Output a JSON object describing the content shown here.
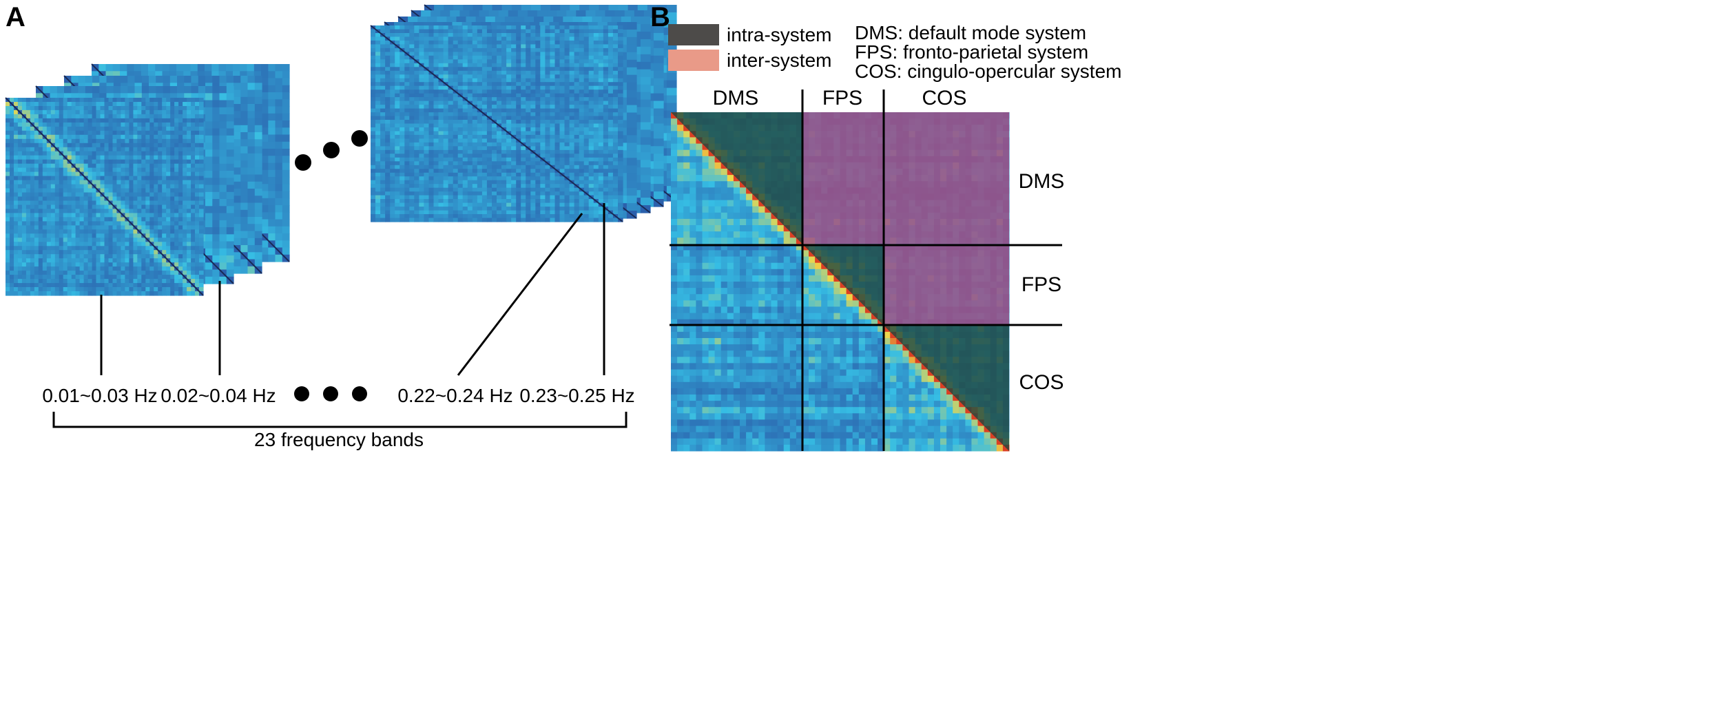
{
  "panel_a": {
    "label": "A",
    "band_labels": [
      "0.01~0.03 Hz",
      "0.02~0.04 Hz",
      "0.22~0.24 Hz",
      "0.23~0.25 Hz"
    ],
    "bracket_label": "23 frequency bands",
    "band_count": 23
  },
  "panel_b": {
    "label": "B",
    "legend": [
      {
        "label": "intra-system",
        "color": "#4d4b49"
      },
      {
        "label": "inter-system",
        "color": "#e99a88"
      }
    ],
    "definitions": [
      "DMS: default mode system",
      "FPS: fronto-parietal system",
      "COS: cingulo-opercular system"
    ],
    "systems": [
      {
        "name": "DMS",
        "size": 21
      },
      {
        "name": "FPS",
        "size": 13
      },
      {
        "name": "COS",
        "size": 20
      }
    ]
  },
  "colors": {
    "matrix_low": "#2a5aa8",
    "matrix_mid": "#36bde4",
    "matrix_high": "#f0d84a",
    "matrix_peak": "#d8241c",
    "intra_overlay": "#21463d",
    "inter_overlay": "#a24e83"
  }
}
